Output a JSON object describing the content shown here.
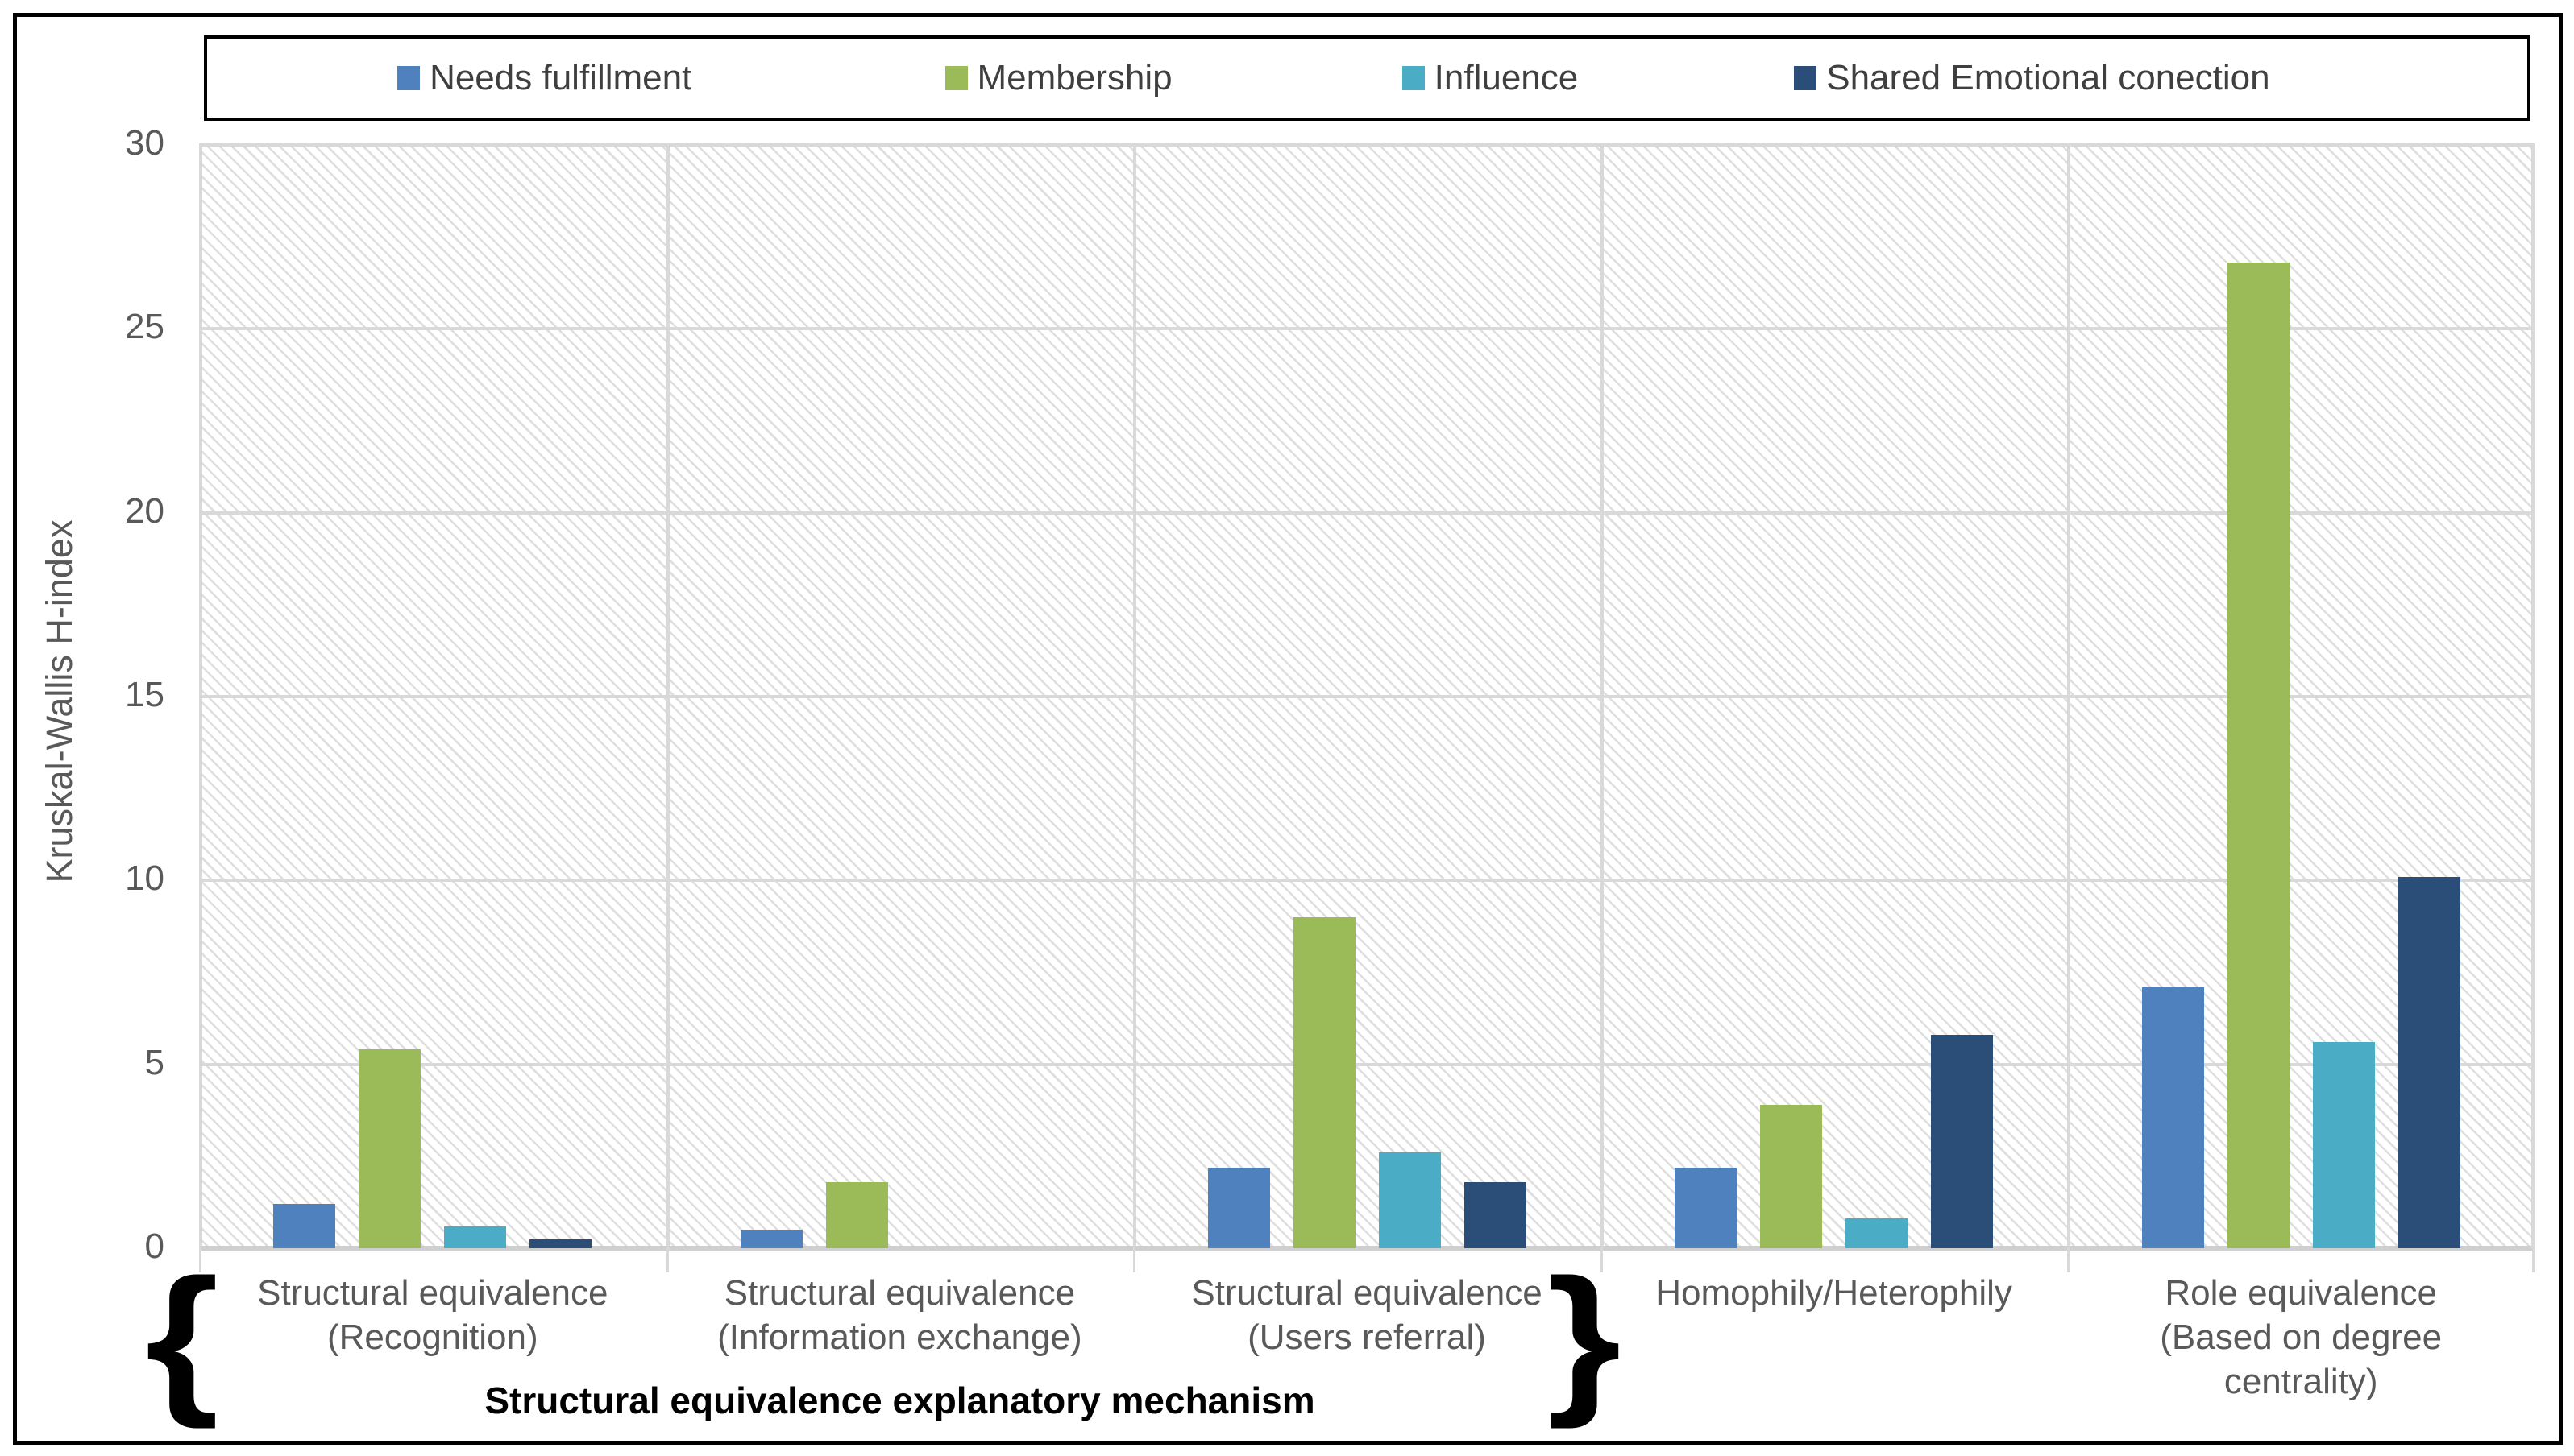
{
  "legend": {
    "items": [
      {
        "label": "Needs fulfillment",
        "color": "#4E81BD",
        "pos_pct": 8.2
      },
      {
        "label": "Membership",
        "color": "#9BBB59",
        "pos_pct": 31.8
      },
      {
        "label": "Influence",
        "color": "#4AACC5",
        "pos_pct": 51.5
      },
      {
        "label": "Shared Emotional conection",
        "color": "#2B4E78",
        "pos_pct": 68.4
      }
    ]
  },
  "y_axis": {
    "title": "Kruskal-Wallis H-index",
    "ticks": [
      0,
      5,
      10,
      15,
      20,
      25,
      30
    ]
  },
  "chart_data": {
    "type": "bar",
    "title": "",
    "xlabel": "",
    "ylabel": "Kruskal-Wallis H-index",
    "ylim": [
      0,
      30
    ],
    "grid": "horizontal gridlines every 5, light vertical category separators, hatched plot background",
    "legend_position": "top",
    "categories": [
      "Structural equivalence\n(Recognition)",
      "Structural equivalence\n(Information exchange)",
      "Structural equivalence\n(Users referral)",
      "Homophily/Heterophily",
      "Role equivalence\n(Based on degree\ncentrality)"
    ],
    "series": [
      {
        "name": "Needs fulfillment",
        "color": "#4E81BD",
        "values": [
          1.2,
          0.5,
          2.2,
          2.2,
          7.1
        ]
      },
      {
        "name": "Membership",
        "color": "#9BBB59",
        "values": [
          5.4,
          1.8,
          9.0,
          3.9,
          26.8
        ]
      },
      {
        "name": "Influence",
        "color": "#4AACC5",
        "values": [
          0.6,
          0,
          2.6,
          0.8,
          5.6
        ]
      },
      {
        "name": "Shared Emotional conection",
        "color": "#2B4E78",
        "values": [
          0.25,
          0,
          1.8,
          5.8,
          10.1
        ]
      }
    ],
    "group_annotation": {
      "label": "Structural equivalence explanatory mechanism",
      "span_categories": [
        0,
        2
      ],
      "left_brace": "{",
      "right_brace": "}"
    }
  }
}
